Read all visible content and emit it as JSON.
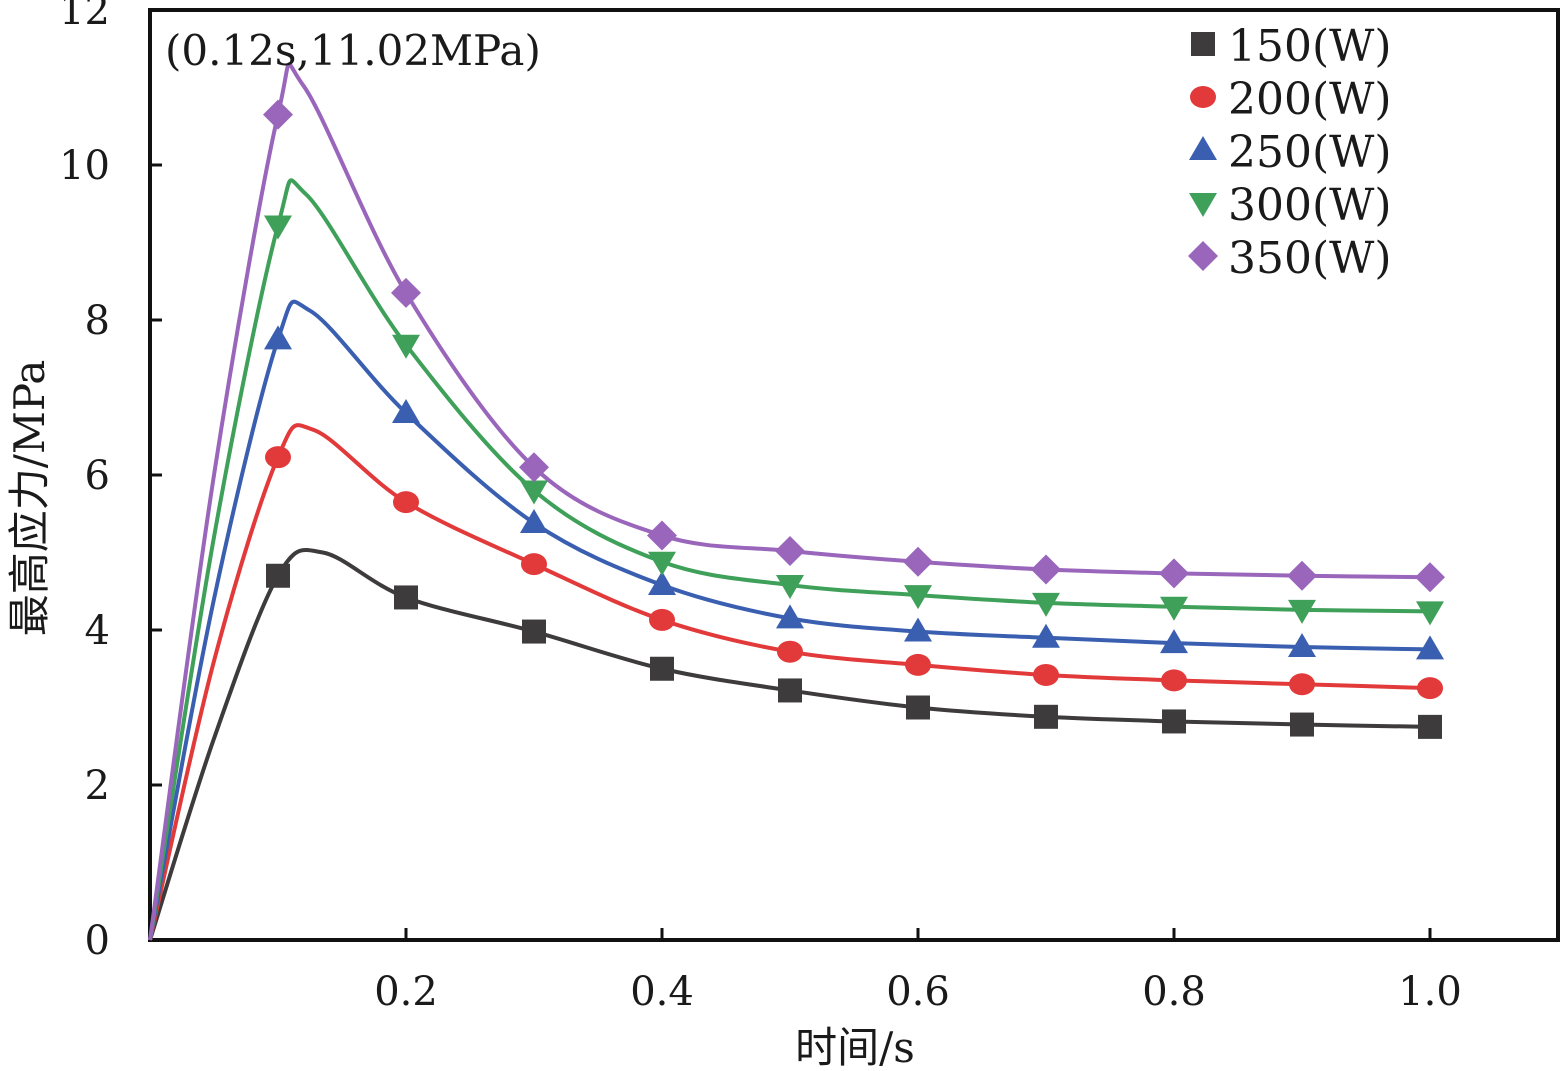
{
  "chart_data": {
    "type": "line",
    "title": "",
    "xlabel": "时间/s",
    "ylabel": "最高应力/MPa",
    "xlim": [
      0,
      1.1
    ],
    "ylim": [
      0,
      12
    ],
    "x_ticks": [
      0.2,
      0.4,
      0.6,
      0.8,
      1.0
    ],
    "x_tick_labels": [
      "0.2",
      "0.4",
      "0.6",
      "0.8",
      "1.0"
    ],
    "y_ticks": [
      0,
      2,
      4,
      6,
      8,
      10,
      12
    ],
    "y_tick_labels": [
      "0",
      "2",
      "4",
      "6",
      "8",
      "10",
      "12"
    ],
    "grid": false,
    "legend_position": "top-right",
    "annotation": "(0.12s,11.02MPa)",
    "x": [
      0,
      0.1,
      0.2,
      0.3,
      0.4,
      0.5,
      0.6,
      0.7,
      0.8,
      0.9,
      1.0
    ],
    "series": [
      {
        "name": "150(W)",
        "marker": "square",
        "color": "#3d3b3b",
        "values": [
          0,
          4.7,
          4.42,
          3.98,
          3.5,
          3.22,
          3.0,
          2.88,
          2.82,
          2.78,
          2.75
        ],
        "curve": [
          [
            0,
            0
          ],
          [
            0.05,
            2.6
          ],
          [
            0.1,
            4.7
          ],
          [
            0.135,
            5.0
          ],
          [
            0.2,
            4.42
          ],
          [
            0.3,
            3.98
          ],
          [
            0.4,
            3.5
          ],
          [
            0.5,
            3.22
          ],
          [
            0.6,
            3.0
          ],
          [
            0.7,
            2.88
          ],
          [
            0.8,
            2.82
          ],
          [
            0.9,
            2.78
          ],
          [
            1.0,
            2.75
          ]
        ]
      },
      {
        "name": "200(W)",
        "marker": "circle",
        "color": "#e23a3a",
        "values": [
          0,
          6.23,
          5.65,
          4.85,
          4.13,
          3.72,
          3.55,
          3.42,
          3.35,
          3.3,
          3.25
        ],
        "curve": [
          [
            0,
            0
          ],
          [
            0.05,
            3.6
          ],
          [
            0.1,
            6.23
          ],
          [
            0.128,
            6.58
          ],
          [
            0.2,
            5.65
          ],
          [
            0.3,
            4.85
          ],
          [
            0.4,
            4.13
          ],
          [
            0.5,
            3.72
          ],
          [
            0.6,
            3.55
          ],
          [
            0.7,
            3.42
          ],
          [
            0.8,
            3.35
          ],
          [
            0.9,
            3.3
          ],
          [
            1.0,
            3.25
          ]
        ]
      },
      {
        "name": "250(W)",
        "marker": "triangle-up",
        "color": "#3a5fb0",
        "values": [
          0,
          7.75,
          6.8,
          5.38,
          4.58,
          4.15,
          3.98,
          3.9,
          3.83,
          3.78,
          3.75
        ],
        "curve": [
          [
            0,
            0
          ],
          [
            0.05,
            4.4
          ],
          [
            0.1,
            7.75
          ],
          [
            0.125,
            8.12
          ],
          [
            0.2,
            6.8
          ],
          [
            0.3,
            5.38
          ],
          [
            0.4,
            4.58
          ],
          [
            0.5,
            4.15
          ],
          [
            0.6,
            3.98
          ],
          [
            0.7,
            3.9
          ],
          [
            0.8,
            3.83
          ],
          [
            0.9,
            3.78
          ],
          [
            1.0,
            3.75
          ]
        ]
      },
      {
        "name": "300(W)",
        "marker": "triangle-down",
        "color": "#3fa05a",
        "values": [
          0,
          9.22,
          7.68,
          5.8,
          4.88,
          4.58,
          4.45,
          4.35,
          4.3,
          4.26,
          4.24
        ],
        "curve": [
          [
            0,
            0
          ],
          [
            0.05,
            5.2
          ],
          [
            0.1,
            9.22
          ],
          [
            0.122,
            9.62
          ],
          [
            0.2,
            7.68
          ],
          [
            0.3,
            5.8
          ],
          [
            0.4,
            4.88
          ],
          [
            0.5,
            4.58
          ],
          [
            0.6,
            4.45
          ],
          [
            0.7,
            4.35
          ],
          [
            0.8,
            4.3
          ],
          [
            0.9,
            4.26
          ],
          [
            1.0,
            4.24
          ]
        ]
      },
      {
        "name": "350(W)",
        "marker": "diamond",
        "color": "#9966bb",
        "values": [
          0,
          10.65,
          8.35,
          6.1,
          5.22,
          5.02,
          4.88,
          4.78,
          4.73,
          4.7,
          4.68
        ],
        "curve": [
          [
            0,
            0
          ],
          [
            0.05,
            6.0
          ],
          [
            0.1,
            10.65
          ],
          [
            0.12,
            11.02
          ],
          [
            0.2,
            8.35
          ],
          [
            0.3,
            6.1
          ],
          [
            0.4,
            5.22
          ],
          [
            0.5,
            5.02
          ],
          [
            0.6,
            4.88
          ],
          [
            0.7,
            4.78
          ],
          [
            0.8,
            4.73
          ],
          [
            0.9,
            4.7
          ],
          [
            1.0,
            4.68
          ]
        ]
      }
    ]
  }
}
